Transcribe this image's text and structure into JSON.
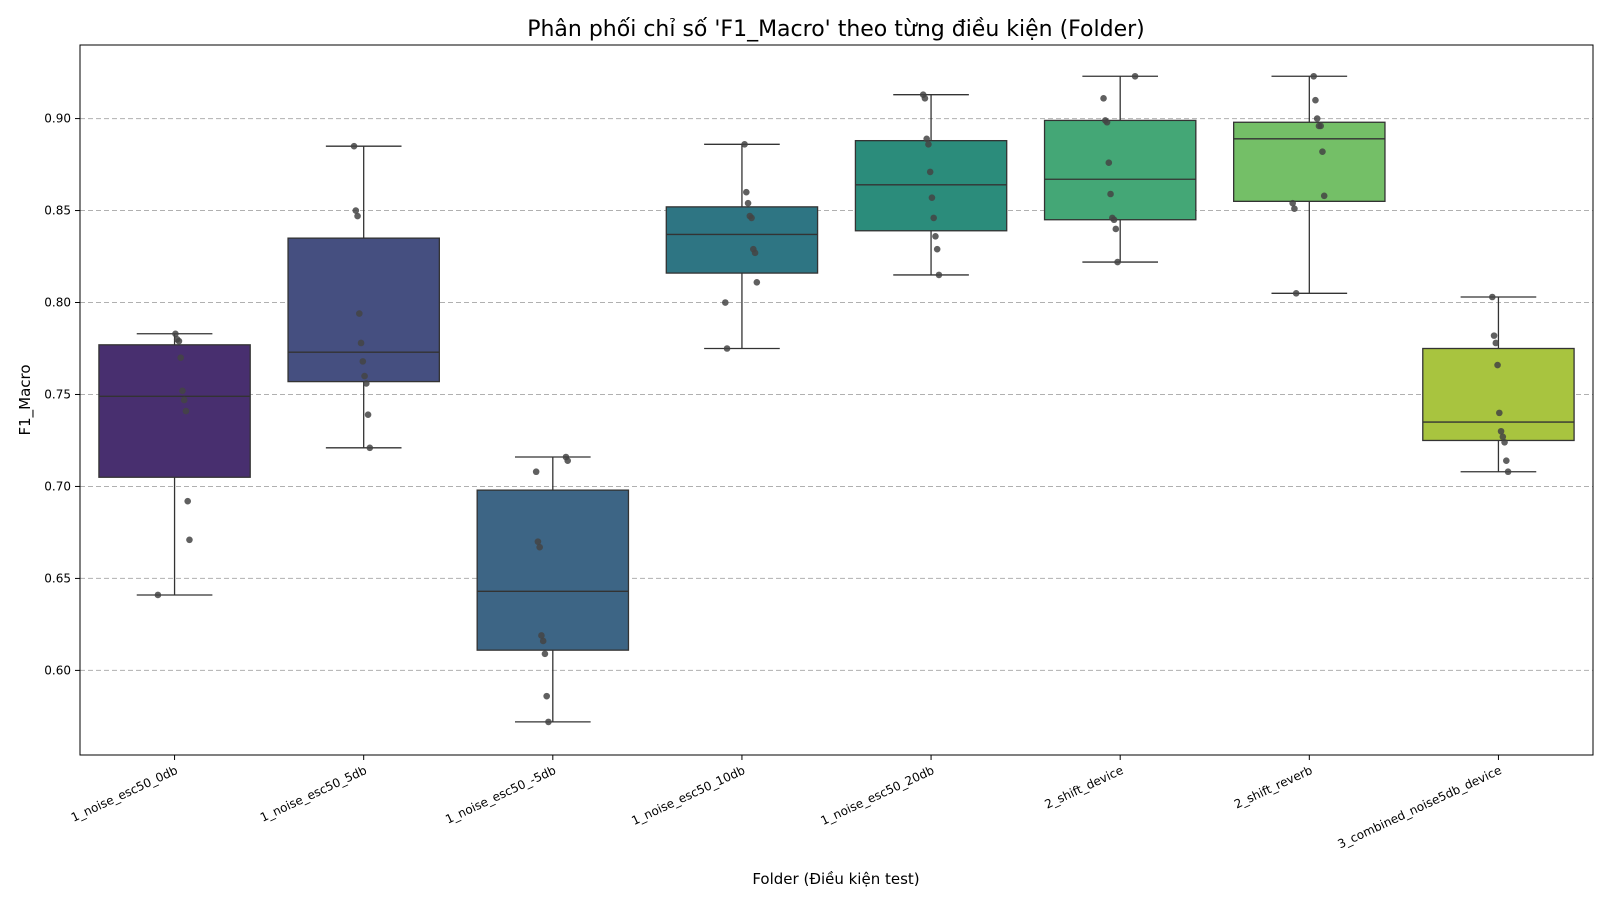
{
  "chart_data": {
    "type": "box",
    "title": "Phân phối chỉ số 'F1_Macro' theo từng điều kiện (Folder)",
    "xlabel": "Folder (Điều kiện test)",
    "ylabel": "F1_Macro",
    "ylim": [
      0.554,
      0.94
    ],
    "yticks": [
      "0.60",
      "0.65",
      "0.70",
      "0.75",
      "0.80",
      "0.85",
      "0.90"
    ],
    "grid": "horizontal dashed",
    "categories": [
      {
        "name": "1_noise_esc50_0db",
        "color": "#482f6f",
        "stats": {
          "whislo": 0.641,
          "q1": 0.705,
          "med": 0.749,
          "q3": 0.777,
          "whishi": 0.783
        },
        "points": [
          0.641,
          0.671,
          0.692,
          0.741,
          0.747,
          0.752,
          0.77,
          0.779,
          0.78,
          0.783
        ]
      },
      {
        "name": "1_noise_esc50_5db",
        "color": "#454f80",
        "stats": {
          "whislo": 0.721,
          "q1": 0.757,
          "med": 0.773,
          "q3": 0.835,
          "whishi": 0.885
        },
        "points": [
          0.721,
          0.739,
          0.756,
          0.76,
          0.768,
          0.778,
          0.794,
          0.847,
          0.85,
          0.885
        ]
      },
      {
        "name": "1_noise_esc50_-5db",
        "color": "#3d6585",
        "stats": {
          "whislo": 0.572,
          "q1": 0.611,
          "med": 0.643,
          "q3": 0.698,
          "whishi": 0.716
        },
        "points": [
          0.572,
          0.586,
          0.609,
          0.616,
          0.619,
          0.667,
          0.67,
          0.708,
          0.714,
          0.716
        ]
      },
      {
        "name": "1_noise_esc50_10db",
        "color": "#2e7583",
        "stats": {
          "whislo": 0.775,
          "q1": 0.816,
          "med": 0.837,
          "q3": 0.852,
          "whishi": 0.886
        },
        "points": [
          0.775,
          0.8,
          0.811,
          0.827,
          0.829,
          0.846,
          0.847,
          0.854,
          0.86,
          0.886
        ]
      },
      {
        "name": "1_noise_esc50_20db",
        "color": "#2b8c7b",
        "stats": {
          "whislo": 0.815,
          "q1": 0.839,
          "med": 0.864,
          "q3": 0.888,
          "whishi": 0.913
        },
        "points": [
          0.815,
          0.829,
          0.836,
          0.846,
          0.857,
          0.871,
          0.886,
          0.889,
          0.911,
          0.913
        ]
      },
      {
        "name": "2_shift_device",
        "color": "#44a776",
        "stats": {
          "whislo": 0.822,
          "q1": 0.845,
          "med": 0.867,
          "q3": 0.899,
          "whishi": 0.923
        },
        "points": [
          0.822,
          0.84,
          0.845,
          0.846,
          0.859,
          0.876,
          0.898,
          0.899,
          0.911,
          0.923
        ]
      },
      {
        "name": "2_shift_reverb",
        "color": "#74bf67",
        "stats": {
          "whislo": 0.805,
          "q1": 0.855,
          "med": 0.889,
          "q3": 0.898,
          "whishi": 0.923
        },
        "points": [
          0.805,
          0.851,
          0.854,
          0.858,
          0.882,
          0.896,
          0.896,
          0.9,
          0.91,
          0.923
        ]
      },
      {
        "name": "3_combined_noise5db_device",
        "color": "#a8c43f",
        "stats": {
          "whislo": 0.708,
          "q1": 0.725,
          "med": 0.735,
          "q3": 0.775,
          "whishi": 0.803
        },
        "points": [
          0.708,
          0.714,
          0.724,
          0.727,
          0.73,
          0.74,
          0.766,
          0.778,
          0.782,
          0.803
        ]
      }
    ]
  }
}
